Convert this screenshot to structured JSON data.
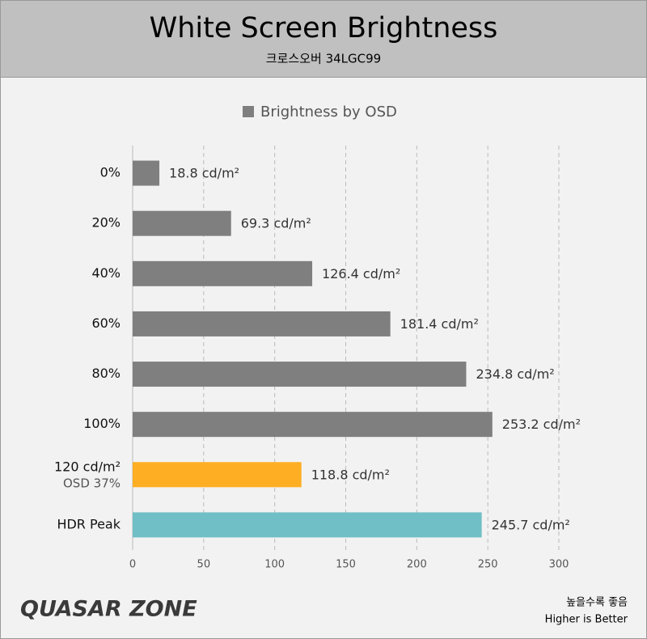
{
  "chart_data": {
    "type": "hbar",
    "title": "White Screen Brightness",
    "subtitle": "크로스오버 34LGC99",
    "categories": [
      "0%",
      "20%",
      "40%",
      "60%",
      "80%",
      "100%",
      "120 cd/m²",
      "HDR Peak"
    ],
    "category_notes": {
      "6": "OSD 37%"
    },
    "series": [
      {
        "name": "Brightness by OSD",
        "color": "#7f7f7f",
        "colors": [
          "#7f7f7f",
          "#7f7f7f",
          "#7f7f7f",
          "#7f7f7f",
          "#7f7f7f",
          "#7f7f7f",
          "#fdae22",
          "#70bfc6"
        ],
        "values": [
          18.8,
          69.3,
          126.4,
          181.4,
          234.8,
          253.2,
          118.8,
          245.7
        ],
        "value_labels": [
          "18.8 cd/m²",
          "69.3 cd/m²",
          "126.4 cd/m²",
          "181.4 cd/m²",
          "234.8 cd/m²",
          "253.2 cd/m²",
          "118.8 cd/m²",
          "245.7 cd/m²"
        ]
      }
    ],
    "xlim": [
      0,
      300
    ],
    "xticks": [
      0,
      50,
      100,
      150,
      200,
      250,
      300
    ],
    "grid": true,
    "legend": "top"
  },
  "logo": "QUASAR ZONE",
  "footer": {
    "note_ko": "높을수록 좋음",
    "note_en": "Higher is Better"
  }
}
